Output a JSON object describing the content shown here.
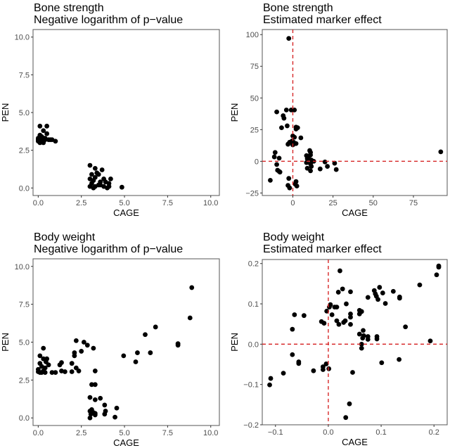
{
  "chart_data": [
    {
      "type": "scatter",
      "title": "Bone strength",
      "subtitle": "Negative logarithm of p−value",
      "xlabel": "CAGE",
      "ylabel": "PEN",
      "xlim": [
        -0.3,
        10.5
      ],
      "ylim": [
        -0.5,
        10.5
      ],
      "xticks": [
        0,
        2.5,
        5,
        7.5,
        10
      ],
      "xtick_labels": [
        "0.0",
        "2.5",
        "5.0",
        "7.5",
        "10.0"
      ],
      "yticks": [
        0,
        2.5,
        5,
        7.5,
        10
      ],
      "ytick_labels": [
        "0.0",
        "2.5",
        "5.0",
        "7.5",
        "10.0"
      ],
      "reference_lines": false,
      "points": [
        [
          0.1,
          4.1
        ],
        [
          0.5,
          4.1
        ],
        [
          0.3,
          3.8
        ],
        [
          0.5,
          3.6
        ],
        [
          0.1,
          3.5
        ],
        [
          0.2,
          3.4
        ],
        [
          0.4,
          3.3
        ],
        [
          0.0,
          3.3
        ],
        [
          0.2,
          3.2
        ],
        [
          0.6,
          3.2
        ],
        [
          0.8,
          3.2
        ],
        [
          1.0,
          3.1
        ],
        [
          0.0,
          3.1
        ],
        [
          0.1,
          3.0
        ],
        [
          0.3,
          3.0
        ],
        [
          0.4,
          3.2
        ],
        [
          0.2,
          3.1
        ],
        [
          0.3,
          3.3
        ],
        [
          0.0,
          3.2
        ],
        [
          0.1,
          3.3
        ],
        [
          0.7,
          3.2
        ],
        [
          0.3,
          3.1
        ],
        [
          3.0,
          1.5
        ],
        [
          3.3,
          1.3
        ],
        [
          3.7,
          1.2
        ],
        [
          3.4,
          1.0
        ],
        [
          3.1,
          0.9
        ],
        [
          3.5,
          0.9
        ],
        [
          3.8,
          0.6
        ],
        [
          4.2,
          0.6
        ],
        [
          3.0,
          0.6
        ],
        [
          3.2,
          0.5
        ],
        [
          3.3,
          0.7
        ],
        [
          3.6,
          0.4
        ],
        [
          3.9,
          0.4
        ],
        [
          4.1,
          0.3
        ],
        [
          3.1,
          0.3
        ],
        [
          3.5,
          0.2
        ],
        [
          3.8,
          0.1
        ],
        [
          4.1,
          0.1
        ],
        [
          3.0,
          0.1
        ],
        [
          3.3,
          0.1
        ],
        [
          3.6,
          0.2
        ],
        [
          4.0,
          0.0
        ],
        [
          4.85,
          0.05
        ],
        [
          3.2,
          0.0
        ]
      ]
    },
    {
      "type": "scatter",
      "title": "Bone strength",
      "subtitle": "Estimated marker effect",
      "xlabel": "CAGE",
      "ylabel": "PEN",
      "xlim": [
        -19,
        96
      ],
      "ylim": [
        -27,
        104
      ],
      "xticks": [
        0,
        25,
        50,
        75
      ],
      "xtick_labels": [
        "0",
        "25",
        "50",
        "75"
      ],
      "yticks": [
        -25,
        0,
        25,
        50,
        75,
        100
      ],
      "ytick_labels": [
        "−25",
        "0",
        "25",
        "50",
        "75",
        "100"
      ],
      "reference_lines": true,
      "reference_color": "#d62728",
      "points": [
        [
          -2.5,
          97
        ],
        [
          -10,
          39
        ],
        [
          -4,
          40.5
        ],
        [
          -1,
          40.5
        ],
        [
          1,
          40.5
        ],
        [
          -6,
          36
        ],
        [
          -5.5,
          34
        ],
        [
          -7,
          26.5
        ],
        [
          -3.5,
          28
        ],
        [
          2,
          27
        ],
        [
          3,
          26.5
        ],
        [
          2,
          25.5
        ],
        [
          0,
          20
        ],
        [
          1,
          19
        ],
        [
          5,
          18.5
        ],
        [
          -0.5,
          16
        ],
        [
          0.5,
          15
        ],
        [
          1,
          14
        ],
        [
          -2,
          15
        ],
        [
          -3,
          13.5
        ],
        [
          0,
          13
        ],
        [
          2,
          14
        ],
        [
          -11,
          7
        ],
        [
          -11.5,
          3.5
        ],
        [
          -8.5,
          2.5
        ],
        [
          -10,
          -2.5
        ],
        [
          -9.5,
          -7
        ],
        [
          -8.5,
          -8
        ],
        [
          -8,
          -8.5
        ],
        [
          -14,
          -15
        ],
        [
          -2.5,
          -13.5
        ],
        [
          -3,
          -19
        ],
        [
          -2,
          -21
        ],
        [
          2,
          -16
        ],
        [
          2.5,
          -19.5
        ],
        [
          1.5,
          -18
        ],
        [
          10.5,
          8.5
        ],
        [
          11,
          7
        ],
        [
          11,
          5
        ],
        [
          10,
          4
        ],
        [
          8.5,
          4.5
        ],
        [
          9,
          2
        ],
        [
          11.5,
          1
        ],
        [
          13,
          0
        ],
        [
          12,
          0
        ],
        [
          8.5,
          -1
        ],
        [
          11,
          -2
        ],
        [
          11.5,
          -4
        ],
        [
          9,
          -5.5
        ],
        [
          11,
          -7.5
        ],
        [
          17,
          -6
        ],
        [
          20,
          -0.5
        ],
        [
          21.5,
          -4
        ],
        [
          26,
          -1.5
        ],
        [
          27,
          -6.5
        ],
        [
          92,
          7.5
        ]
      ]
    },
    {
      "type": "scatter",
      "title": "Body weight",
      "subtitle": "Negative logarithm of p−value",
      "xlabel": "CAGE",
      "ylabel": "PEN",
      "xlim": [
        -0.3,
        10.5
      ],
      "ylim": [
        -0.5,
        10.5
      ],
      "xticks": [
        0,
        2.5,
        5,
        7.5,
        10
      ],
      "xtick_labels": [
        "0.0",
        "2.5",
        "5.0",
        "7.5",
        "10.0"
      ],
      "yticks": [
        0,
        2.5,
        5,
        7.5,
        10
      ],
      "ytick_labels": [
        "0.0",
        "2.5",
        "5.0",
        "7.5",
        "10.0"
      ],
      "reference_lines": false,
      "points": [
        [
          8.9,
          8.6
        ],
        [
          8.8,
          6.6
        ],
        [
          6.8,
          6.0
        ],
        [
          6.2,
          5.5
        ],
        [
          8.1,
          4.9
        ],
        [
          8.1,
          4.8
        ],
        [
          2.2,
          5.1
        ],
        [
          2.65,
          5.0
        ],
        [
          2.85,
          4.8
        ],
        [
          0.3,
          4.6
        ],
        [
          3.2,
          4.6
        ],
        [
          2.5,
          4.4
        ],
        [
          5.75,
          4.3
        ],
        [
          6.5,
          4.3
        ],
        [
          2.1,
          4.3
        ],
        [
          2.1,
          4.1
        ],
        [
          0.1,
          4.1
        ],
        [
          4.95,
          4.1
        ],
        [
          0.3,
          3.9
        ],
        [
          0.5,
          3.9
        ],
        [
          0.45,
          3.7
        ],
        [
          5.65,
          3.7
        ],
        [
          1.35,
          3.65
        ],
        [
          1.95,
          3.6
        ],
        [
          1.25,
          3.5
        ],
        [
          0.1,
          3.6
        ],
        [
          0.6,
          3.5
        ],
        [
          0.2,
          3.4
        ],
        [
          0.4,
          3.3
        ],
        [
          2.2,
          3.3
        ],
        [
          2.35,
          3.1
        ],
        [
          1.35,
          3.1
        ],
        [
          1.55,
          3.05
        ],
        [
          1.95,
          3.05
        ],
        [
          3.3,
          3.1
        ],
        [
          0.0,
          3.2
        ],
        [
          0.1,
          3.0
        ],
        [
          0.3,
          3.1
        ],
        [
          0.4,
          3.0
        ],
        [
          0.8,
          3.0
        ],
        [
          1.0,
          3.0
        ],
        [
          0.2,
          3.0
        ],
        [
          0.0,
          3.05
        ],
        [
          3.1,
          2.2
        ],
        [
          3.3,
          2.2
        ],
        [
          3.0,
          1.35
        ],
        [
          3.6,
          1.3
        ],
        [
          3.3,
          1.2
        ],
        [
          3.85,
          0.85
        ],
        [
          4.55,
          0.65
        ],
        [
          3.1,
          0.55
        ],
        [
          3.9,
          0.45
        ],
        [
          3.0,
          0.45
        ],
        [
          3.2,
          0.35
        ],
        [
          3.1,
          0.35
        ],
        [
          3.3,
          0.3
        ],
        [
          3.85,
          0.25
        ],
        [
          3.05,
          0.25
        ],
        [
          3.3,
          0.2
        ],
        [
          4.45,
          0.05
        ],
        [
          3.0,
          0.0
        ]
      ]
    },
    {
      "type": "scatter",
      "title": "Body weight",
      "subtitle": "Estimated marker effect",
      "xlabel": "CAGE",
      "ylabel": "PEN",
      "xlim": [
        -0.125,
        0.225
      ],
      "ylim": [
        -0.2,
        0.21
      ],
      "xticks": [
        -0.1,
        0,
        0.1,
        0.2
      ],
      "xtick_labels": [
        "−0.1",
        "0.0",
        "0.1",
        "0.2"
      ],
      "yticks": [
        -0.2,
        -0.1,
        0,
        0.1,
        0.2
      ],
      "ytick_labels": [
        "−0.2",
        "−0.1",
        "0.0",
        "0.1",
        "0.2"
      ],
      "reference_lines": true,
      "reference_color": "#d62728",
      "points": [
        [
          0.209,
          0.194
        ],
        [
          0.209,
          0.191
        ],
        [
          0.205,
          0.172
        ],
        [
          0.022,
          0.182
        ],
        [
          0.173,
          0.147
        ],
        [
          0.097,
          0.141
        ],
        [
          0.027,
          0.137
        ],
        [
          0.019,
          0.129
        ],
        [
          0.042,
          0.13
        ],
        [
          0.087,
          0.133
        ],
        [
          0.123,
          0.131
        ],
        [
          0.103,
          0.127
        ],
        [
          0.089,
          0.125
        ],
        [
          0.091,
          0.119
        ],
        [
          0.075,
          0.116
        ],
        [
          0.135,
          0.117
        ],
        [
          0.135,
          0.114
        ],
        [
          0.094,
          0.111
        ],
        [
          0.034,
          0.1
        ],
        [
          0.108,
          0.101
        ],
        [
          0.004,
          0.098
        ],
        [
          0.002,
          0.092
        ],
        [
          0.016,
          0.092
        ],
        [
          0.012,
          0.092
        ],
        [
          -0.003,
          0.082
        ],
        [
          0.059,
          0.084
        ],
        [
          0.063,
          0.081
        ],
        [
          0.059,
          0.075
        ],
        [
          0.042,
          0.075
        ],
        [
          0.007,
          0.073
        ],
        [
          0.042,
          0.067
        ],
        [
          -0.064,
          0.073
        ],
        [
          -0.046,
          0.071
        ],
        [
          0.016,
          0.058
        ],
        [
          0.032,
          0.058
        ],
        [
          -0.013,
          0.056
        ],
        [
          0.029,
          0.054
        ],
        [
          -0.008,
          0.052
        ],
        [
          0.02,
          0.049
        ],
        [
          0.042,
          0.049
        ],
        [
          0.146,
          0.043
        ],
        [
          0.066,
          0.034
        ],
        [
          -0.068,
          0.037
        ],
        [
          0.059,
          0.025
        ],
        [
          0.065,
          0.015
        ],
        [
          0.067,
          0.021
        ],
        [
          0.075,
          0.019
        ],
        [
          0.075,
          0.012
        ],
        [
          0.092,
          0.019
        ],
        [
          0.092,
          0.013
        ],
        [
          0.193,
          0.008
        ],
        [
          0.063,
          0.0
        ],
        [
          0.063,
          -0.01
        ],
        [
          -0.068,
          -0.026
        ],
        [
          -0.056,
          -0.044
        ],
        [
          -0.056,
          -0.048
        ],
        [
          0.101,
          -0.046
        ],
        [
          0.134,
          -0.038
        ],
        [
          -0.004,
          -0.049
        ],
        [
          -0.01,
          -0.056
        ],
        [
          -0.01,
          -0.063
        ],
        [
          0.001,
          -0.061
        ],
        [
          -0.028,
          -0.066
        ],
        [
          0.046,
          -0.07
        ],
        [
          -0.085,
          -0.072
        ],
        [
          -0.109,
          -0.085
        ],
        [
          -0.111,
          -0.101
        ],
        [
          0.04,
          -0.148
        ],
        [
          0.033,
          -0.182
        ]
      ]
    }
  ]
}
